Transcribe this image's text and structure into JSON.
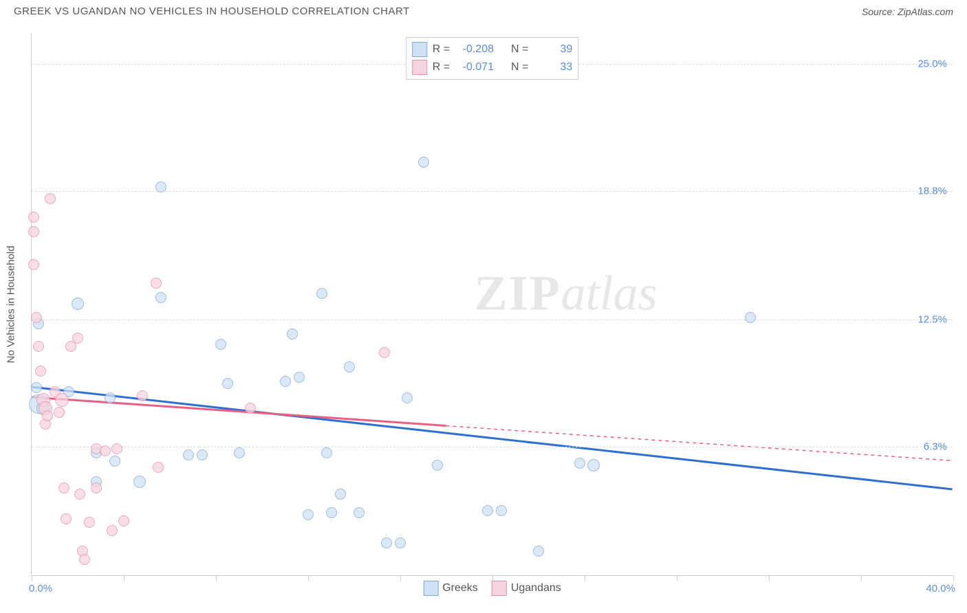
{
  "header": {
    "title": "GREEK VS UGANDAN NO VEHICLES IN HOUSEHOLD CORRELATION CHART",
    "source": "Source: ZipAtlas.com"
  },
  "watermark": {
    "a": "ZIP",
    "b": "atlas"
  },
  "chart": {
    "type": "scatter",
    "background_color": "#ffffff",
    "grid_color": "#dddddd",
    "axis_color": "#cccccc",
    "ylabel": "No Vehicles in Household",
    "ylabel_color": "#555555",
    "label_fontsize": 15,
    "xlim": [
      0.0,
      40.0
    ],
    "ylim": [
      0.0,
      26.5
    ],
    "x_min_label": "0.0%",
    "x_max_label": "40.0%",
    "yticks": [
      {
        "v": 6.3,
        "label": "6.3%"
      },
      {
        "v": 12.5,
        "label": "12.5%"
      },
      {
        "v": 18.8,
        "label": "18.8%"
      },
      {
        "v": 25.0,
        "label": "25.0%"
      }
    ],
    "xtick_positions": [
      0,
      4,
      8,
      12,
      16,
      20,
      24,
      28,
      32,
      36,
      40
    ],
    "series": [
      {
        "name": "Greeks",
        "marker_fill": "#cfe1f4",
        "marker_stroke": "#7fa8d9",
        "marker_fill_opacity": 0.75,
        "trend_color": "#2f6fd0",
        "trend_width": 3,
        "trend": {
          "x1": 0.0,
          "y1": 9.2,
          "x2": 40.0,
          "y2": 4.2,
          "solid_until_x": 40.0
        },
        "R": "-0.208",
        "N": "39",
        "points": [
          {
            "x": 0.3,
            "y": 12.3,
            "r": 8
          },
          {
            "x": 0.3,
            "y": 8.4,
            "r": 14
          },
          {
            "x": 0.5,
            "y": 8.2,
            "r": 10
          },
          {
            "x": 1.6,
            "y": 9.0,
            "r": 8
          },
          {
            "x": 2.0,
            "y": 13.3,
            "r": 9
          },
          {
            "x": 2.8,
            "y": 6.0,
            "r": 8
          },
          {
            "x": 2.8,
            "y": 4.6,
            "r": 8
          },
          {
            "x": 3.4,
            "y": 8.7,
            "r": 8
          },
          {
            "x": 3.6,
            "y": 5.6,
            "r": 8
          },
          {
            "x": 4.7,
            "y": 4.6,
            "r": 9
          },
          {
            "x": 5.6,
            "y": 19.0,
            "r": 8
          },
          {
            "x": 5.6,
            "y": 13.6,
            "r": 8
          },
          {
            "x": 6.8,
            "y": 5.9,
            "r": 8
          },
          {
            "x": 7.4,
            "y": 5.9,
            "r": 8
          },
          {
            "x": 8.2,
            "y": 11.3,
            "r": 8
          },
          {
            "x": 8.5,
            "y": 9.4,
            "r": 8
          },
          {
            "x": 9.0,
            "y": 6.0,
            "r": 8
          },
          {
            "x": 11.0,
            "y": 9.5,
            "r": 8
          },
          {
            "x": 11.3,
            "y": 11.8,
            "r": 8
          },
          {
            "x": 11.6,
            "y": 9.7,
            "r": 8
          },
          {
            "x": 12.0,
            "y": 3.0,
            "r": 8
          },
          {
            "x": 12.6,
            "y": 13.8,
            "r": 8
          },
          {
            "x": 13.0,
            "y": 3.1,
            "r": 8
          },
          {
            "x": 13.4,
            "y": 4.0,
            "r": 8
          },
          {
            "x": 13.8,
            "y": 10.2,
            "r": 8
          },
          {
            "x": 14.2,
            "y": 3.1,
            "r": 8
          },
          {
            "x": 15.4,
            "y": 1.6,
            "r": 8
          },
          {
            "x": 16.0,
            "y": 1.6,
            "r": 8
          },
          {
            "x": 16.3,
            "y": 8.7,
            "r": 8
          },
          {
            "x": 17.0,
            "y": 20.2,
            "r": 8
          },
          {
            "x": 17.6,
            "y": 5.4,
            "r": 8
          },
          {
            "x": 19.8,
            "y": 3.2,
            "r": 8
          },
          {
            "x": 20.4,
            "y": 3.2,
            "r": 8
          },
          {
            "x": 22.0,
            "y": 1.2,
            "r": 8
          },
          {
            "x": 23.8,
            "y": 5.5,
            "r": 8
          },
          {
            "x": 24.4,
            "y": 5.4,
            "r": 9
          },
          {
            "x": 31.2,
            "y": 12.6,
            "r": 8
          },
          {
            "x": 12.8,
            "y": 6.0,
            "r": 8
          },
          {
            "x": 0.2,
            "y": 9.2,
            "r": 8
          }
        ]
      },
      {
        "name": "Ugandans",
        "marker_fill": "#f6d4de",
        "marker_stroke": "#e88fa8",
        "marker_fill_opacity": 0.75,
        "trend_color": "#e85f85",
        "trend_width": 3,
        "trend": {
          "x1": 0.0,
          "y1": 8.7,
          "x2": 40.0,
          "y2": 5.6,
          "solid_until_x": 18.0
        },
        "R": "-0.071",
        "N": "33",
        "points": [
          {
            "x": 0.1,
            "y": 17.5,
            "r": 8
          },
          {
            "x": 0.1,
            "y": 16.8,
            "r": 8
          },
          {
            "x": 0.1,
            "y": 15.2,
            "r": 8
          },
          {
            "x": 0.2,
            "y": 12.6,
            "r": 8
          },
          {
            "x": 0.3,
            "y": 11.2,
            "r": 8
          },
          {
            "x": 0.4,
            "y": 10.0,
            "r": 8
          },
          {
            "x": 0.5,
            "y": 8.6,
            "r": 10
          },
          {
            "x": 0.6,
            "y": 8.2,
            "r": 10
          },
          {
            "x": 0.6,
            "y": 7.4,
            "r": 8
          },
          {
            "x": 0.7,
            "y": 7.8,
            "r": 8
          },
          {
            "x": 0.8,
            "y": 18.4,
            "r": 8
          },
          {
            "x": 1.0,
            "y": 9.0,
            "r": 8
          },
          {
            "x": 1.2,
            "y": 8.0,
            "r": 8
          },
          {
            "x": 1.3,
            "y": 8.6,
            "r": 10
          },
          {
            "x": 1.4,
            "y": 4.3,
            "r": 8
          },
          {
            "x": 1.5,
            "y": 2.8,
            "r": 8
          },
          {
            "x": 1.7,
            "y": 11.2,
            "r": 8
          },
          {
            "x": 2.0,
            "y": 11.6,
            "r": 8
          },
          {
            "x": 2.1,
            "y": 4.0,
            "r": 8
          },
          {
            "x": 2.2,
            "y": 1.2,
            "r": 8
          },
          {
            "x": 2.3,
            "y": 0.8,
            "r": 8
          },
          {
            "x": 2.5,
            "y": 2.6,
            "r": 8
          },
          {
            "x": 2.8,
            "y": 6.2,
            "r": 8
          },
          {
            "x": 2.8,
            "y": 4.3,
            "r": 8
          },
          {
            "x": 3.2,
            "y": 6.1,
            "r": 8
          },
          {
            "x": 3.5,
            "y": 2.2,
            "r": 8
          },
          {
            "x": 3.7,
            "y": 6.2,
            "r": 8
          },
          {
            "x": 4.0,
            "y": 2.7,
            "r": 8
          },
          {
            "x": 4.8,
            "y": 8.8,
            "r": 8
          },
          {
            "x": 5.4,
            "y": 14.3,
            "r": 8
          },
          {
            "x": 5.5,
            "y": 5.3,
            "r": 8
          },
          {
            "x": 9.5,
            "y": 8.2,
            "r": 8
          },
          {
            "x": 15.3,
            "y": 10.9,
            "r": 8
          }
        ]
      }
    ],
    "stats_legend": {
      "r_label": "R =",
      "n_label": "N ="
    },
    "bottom_legend": {
      "items": [
        "Greeks",
        "Ugandans"
      ]
    }
  }
}
